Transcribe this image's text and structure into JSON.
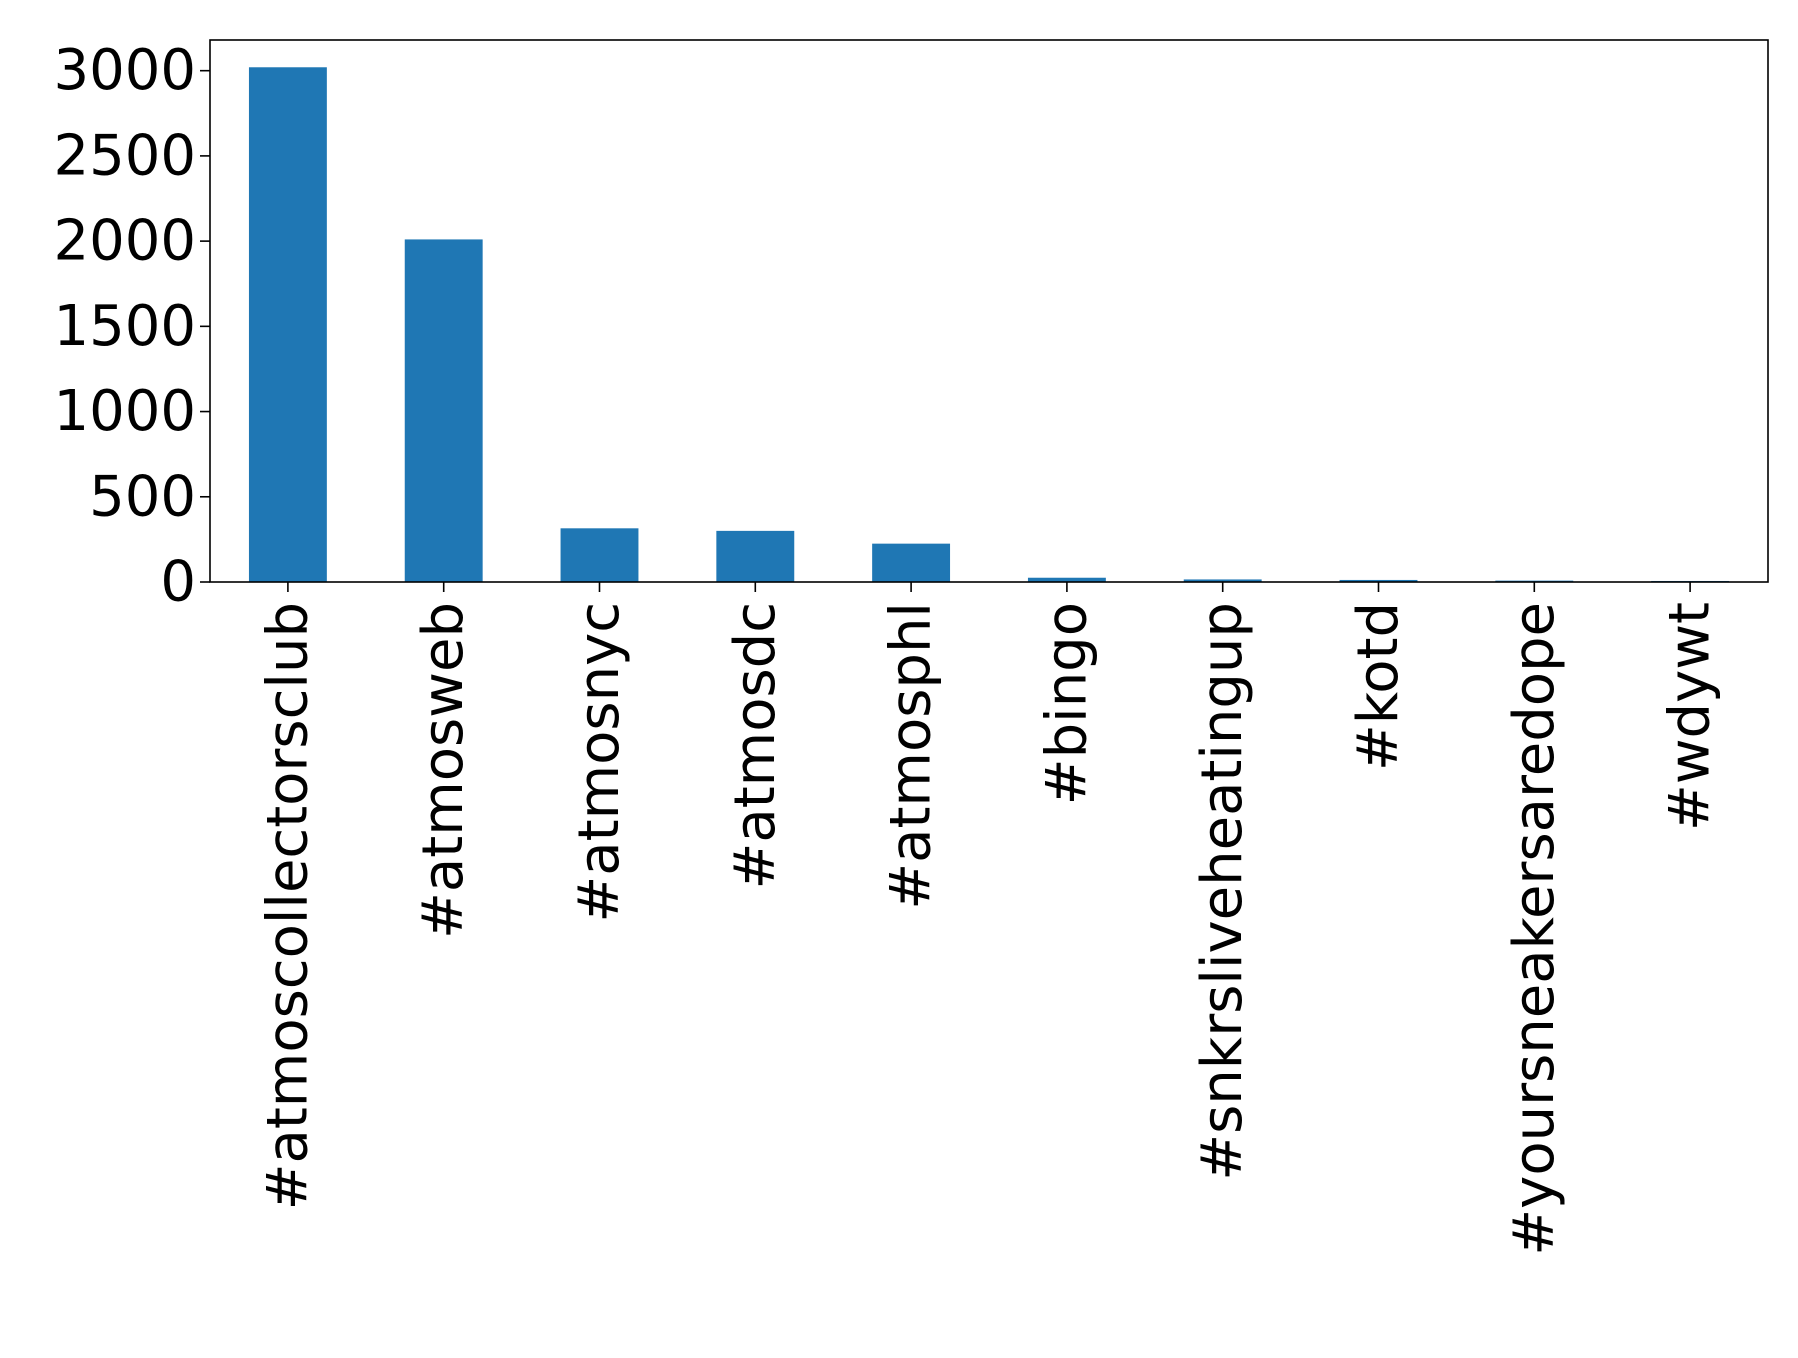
{
  "chart_data": {
    "type": "bar",
    "title": "",
    "xlabel": "",
    "ylabel": "",
    "categories": [
      "#atmoscollectorsclub",
      "#atmosweb",
      "#atmosnyc",
      "#atmosdc",
      "#atmosphl",
      "#bingo",
      "#snkrsliveheatingup",
      "#kotd",
      "#yoursneakersaredope",
      "#wdywt"
    ],
    "values": [
      3020,
      2010,
      315,
      300,
      225,
      25,
      15,
      12,
      8,
      6
    ],
    "ylim": [
      0,
      3180
    ],
    "yticks": [
      0,
      500,
      1000,
      1500,
      2000,
      2500,
      3000
    ],
    "ytick_labels": [
      "0",
      "500",
      "1000",
      "1500",
      "2000",
      "2500",
      "3000"
    ],
    "bar_color": "#1f77b4",
    "grid": false,
    "legend": "none"
  }
}
